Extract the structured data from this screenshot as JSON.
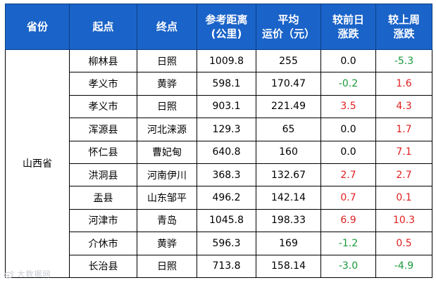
{
  "headers": [
    "省份",
    "起点",
    "终点",
    "参考距离\n(公里)",
    "平均\n运价（元）",
    "较前日\n涨跌",
    "较上周\n涨跌"
  ],
  "province": "山西省",
  "rows": [
    {
      "from": "柳林县",
      "to": "日照",
      "distance": "1009.8",
      "price": "255",
      "day_change": "0.0",
      "day_dir": "flat",
      "week_change": "-5.3",
      "week_dir": "down"
    },
    {
      "from": "孝义市",
      "to": "黄骅",
      "distance": "598.1",
      "price": "170.47",
      "day_change": "-0.2",
      "day_dir": "down",
      "week_change": "1.6",
      "week_dir": "up"
    },
    {
      "from": "孝义市",
      "to": "日照",
      "distance": "903.1",
      "price": "221.49",
      "day_change": "3.5",
      "day_dir": "up",
      "week_change": "4.3",
      "week_dir": "up"
    },
    {
      "from": "浑源县",
      "to": "河北涞源",
      "distance": "129.3",
      "price": "65",
      "day_change": "0.0",
      "day_dir": "flat",
      "week_change": "1.7",
      "week_dir": "up"
    },
    {
      "from": "怀仁县",
      "to": "曹妃甸",
      "distance": "640.8",
      "price": "160",
      "day_change": "0.0",
      "day_dir": "flat",
      "week_change": "7.1",
      "week_dir": "up"
    },
    {
      "from": "洪洞县",
      "to": "河南伊川",
      "distance": "368.3",
      "price": "132.67",
      "day_change": "2.7",
      "day_dir": "up",
      "week_change": "2.7",
      "week_dir": "up"
    },
    {
      "from": "盂县",
      "to": "山东邹平",
      "distance": "496.2",
      "price": "142.14",
      "day_change": "0.7",
      "day_dir": "up",
      "week_change": "0.1",
      "week_dir": "up"
    },
    {
      "from": "河津市",
      "to": "青岛",
      "distance": "1045.8",
      "price": "198.33",
      "day_change": "6.9",
      "day_dir": "up",
      "week_change": "10.3",
      "week_dir": "up"
    },
    {
      "from": "介休市",
      "to": "黄骅",
      "distance": "596.3",
      "price": "169",
      "day_change": "-1.2",
      "day_dir": "down",
      "week_change": "0.5",
      "week_dir": "up"
    },
    {
      "from": "长治县",
      "to": "日照",
      "distance": "713.8",
      "price": "158.14",
      "day_change": "-3.0",
      "day_dir": "down",
      "week_change": "-4.9",
      "week_dir": "down"
    }
  ],
  "watermark": "大数据网",
  "colors": {
    "header_bg": "#1a63c8",
    "up": "#e02020",
    "down": "#1a9a3a"
  }
}
